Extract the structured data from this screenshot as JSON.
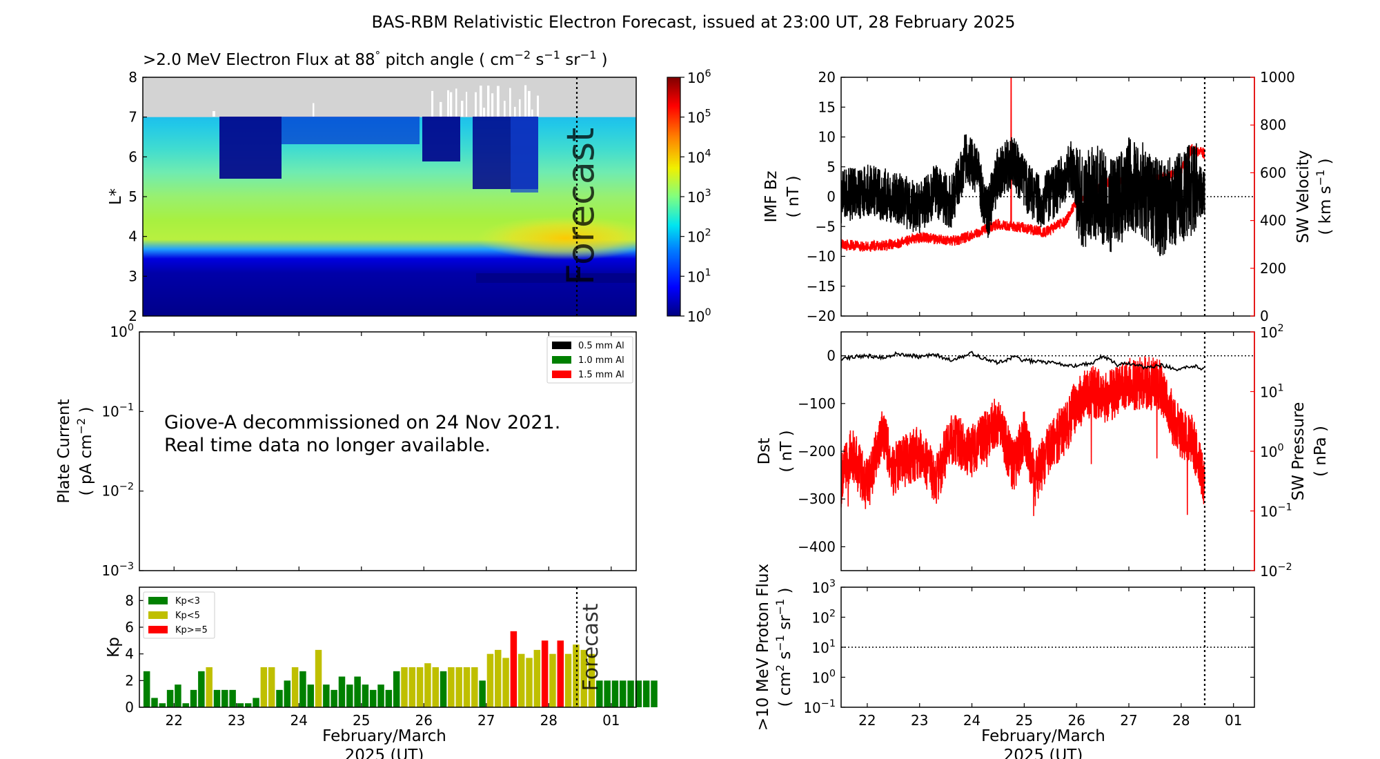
{
  "figure": {
    "title": "BAS-RBM Relativistic Electron Forecast, issued at 23:00 UT, 28 February 2025"
  },
  "colors": {
    "black": "#000000",
    "red": "#ff0000",
    "kp_green": "#008000",
    "kp_yellow": "#bfbf00",
    "kp_red": "#ff0000",
    "grey": "#d3d3d3",
    "forecast_text": "#b0b0b0"
  },
  "time_axis": {
    "range_days": [
      21.5,
      29.4
    ],
    "forecast_start": 28.45,
    "tick_labels": [
      "22",
      "23",
      "24",
      "25",
      "26",
      "27",
      "28",
      "01"
    ],
    "xlabel_line1": "February/March",
    "xlabel_line2": "2025 (UT)"
  },
  "chart_data": [
    {
      "id": "electron_flux",
      "type": "heatmap",
      "title_main": ">2.0 MeV Electron Flux at 88",
      "title_deg": "°",
      "title_paren": " pitch angle ( cm",
      "title_exp1": "−2",
      "title_s": " s",
      "title_exp2": "−1",
      "title_sr": " sr",
      "title_exp3": "−1",
      "title_close": " )",
      "ylabel": "L*",
      "ylim": [
        2,
        8
      ],
      "yticks": [
        "2",
        "3",
        "4",
        "5",
        "6",
        "7",
        "8"
      ],
      "colorbar_base": "10",
      "colorbar_exponents": [
        "0",
        "1",
        "2",
        "3",
        "4",
        "5",
        "6"
      ],
      "forecast_label": "Forecast",
      "grey_region_above_L": 7
    },
    {
      "id": "plate_current",
      "type": "line",
      "ylabel_line1": "Plate Current",
      "ylabel_line2": "( pA cm",
      "ylabel_exp": "−2",
      "ylabel_close": " )",
      "y_base": "10",
      "y_exponents": [
        "0",
        "−1",
        "−2",
        "−3"
      ],
      "legend": [
        "0.5 mm Al",
        "1.0 mm Al",
        "1.5 mm Al"
      ],
      "message_line1": "Giove-A decommissioned on 24 Nov 2021.",
      "message_line2": "Real time data no longer available."
    },
    {
      "id": "kp",
      "type": "bar",
      "ylabel": "Kp",
      "ylim": [
        0,
        9
      ],
      "yticks": [
        "0",
        "2",
        "4",
        "6",
        "8"
      ],
      "legend": [
        "Kp<3",
        "Kp<5",
        "Kp>=5"
      ],
      "forecast_label": "Forecast",
      "bar_width_days": 0.105,
      "values": [
        2.7,
        0.7,
        0.3,
        1.3,
        1.7,
        0.3,
        1.3,
        2.7,
        3.0,
        1.3,
        1.3,
        1.3,
        0.3,
        0.3,
        0.7,
        3.0,
        3.0,
        1.3,
        2.0,
        3.0,
        2.7,
        1.7,
        4.3,
        1.7,
        1.3,
        2.3,
        1.7,
        2.3,
        1.7,
        1.3,
        1.7,
        1.3,
        2.7,
        3.0,
        3.0,
        3.0,
        3.3,
        3.0,
        2.7,
        3.0,
        3.0,
        3.0,
        3.0,
        2.0,
        4.0,
        4.3,
        3.7,
        5.7,
        4.0,
        3.7,
        4.3,
        5.0,
        4.0,
        5.0,
        4.0,
        4.7,
        4.3,
        4.0,
        2.0,
        2.0,
        2.0,
        2.0,
        2.0,
        2.0,
        2.0,
        2.0
      ]
    },
    {
      "id": "imf_sw",
      "type": "line",
      "left_label_line1": "IMF Bz",
      "left_label_line2": "( nT )",
      "left_ylim": [
        -20,
        20
      ],
      "left_ticks": [
        "−20",
        "−15",
        "−10",
        "−5",
        "0",
        "5",
        "10",
        "15",
        "20"
      ],
      "right_label_line1": "SW Velocity",
      "right_label_line2": "( km s",
      "right_label_exp": "−1",
      "right_label_close": " )",
      "right_ylim": [
        0,
        1000
      ],
      "right_ticks": [
        "0",
        "200",
        "400",
        "600",
        "800",
        "1000"
      ],
      "bz_anchors": [
        [
          21.5,
          0
        ],
        [
          22.0,
          1
        ],
        [
          22.5,
          0
        ],
        [
          23.0,
          -2
        ],
        [
          23.3,
          1
        ],
        [
          23.6,
          -1
        ],
        [
          23.9,
          7
        ],
        [
          24.1,
          4
        ],
        [
          24.3,
          -3
        ],
        [
          24.5,
          4
        ],
        [
          24.8,
          6
        ],
        [
          25.0,
          2
        ],
        [
          25.3,
          -1
        ],
        [
          25.6,
          1
        ],
        [
          25.9,
          5
        ],
        [
          26.1,
          -1
        ],
        [
          26.4,
          1
        ],
        [
          26.7,
          -2
        ],
        [
          27.0,
          2
        ],
        [
          27.3,
          1
        ],
        [
          27.6,
          -2
        ],
        [
          27.9,
          -1
        ],
        [
          28.2,
          1
        ],
        [
          28.45,
          1
        ]
      ],
      "vel_anchors": [
        [
          21.5,
          300
        ],
        [
          22.0,
          290
        ],
        [
          22.5,
          300
        ],
        [
          23.0,
          330
        ],
        [
          23.4,
          320
        ],
        [
          23.7,
          315
        ],
        [
          24.0,
          340
        ],
        [
          24.5,
          385
        ],
        [
          25.0,
          370
        ],
        [
          25.4,
          350
        ],
        [
          25.8,
          400
        ],
        [
          26.0,
          480
        ],
        [
          26.3,
          520
        ],
        [
          26.6,
          560
        ],
        [
          27.0,
          560
        ],
        [
          27.4,
          565
        ],
        [
          27.8,
          590
        ],
        [
          28.0,
          610
        ],
        [
          28.2,
          700
        ],
        [
          28.45,
          680
        ]
      ],
      "vel_spike": [
        24.75,
        1000
      ]
    },
    {
      "id": "dst_pressure",
      "type": "line",
      "left_label_line1": "Dst",
      "left_label_line2": "( nT )",
      "left_ylim": [
        -450,
        50
      ],
      "left_ticks": [
        "−400",
        "−300",
        "−200",
        "−100",
        "0"
      ],
      "right_label_line1": "SW Pressure",
      "right_label_line2": "( nPa )",
      "right_base": "10",
      "right_exponents": [
        "−2",
        "−1",
        "0",
        "1",
        "2"
      ],
      "dst_anchors": [
        [
          21.5,
          -5
        ],
        [
          22.0,
          0
        ],
        [
          22.3,
          -3
        ],
        [
          22.6,
          5
        ],
        [
          23.0,
          -2
        ],
        [
          23.3,
          3
        ],
        [
          23.6,
          -10
        ],
        [
          24.0,
          5
        ],
        [
          24.2,
          -5
        ],
        [
          24.5,
          -15
        ],
        [
          24.8,
          -2
        ],
        [
          25.0,
          -10
        ],
        [
          25.3,
          -12
        ],
        [
          25.6,
          -15
        ],
        [
          26.0,
          -22
        ],
        [
          26.3,
          -15
        ],
        [
          26.5,
          0
        ],
        [
          26.8,
          -20
        ],
        [
          27.0,
          -15
        ],
        [
          27.3,
          -25
        ],
        [
          27.6,
          -20
        ],
        [
          27.9,
          -28
        ],
        [
          28.2,
          -20
        ],
        [
          28.45,
          -28
        ]
      ],
      "log_pressure_anchors": [
        [
          21.5,
          -0.5
        ],
        [
          21.7,
          0.0
        ],
        [
          22.0,
          -0.6
        ],
        [
          22.3,
          0.3
        ],
        [
          22.5,
          -0.3
        ],
        [
          23.0,
          0.0
        ],
        [
          23.3,
          -0.5
        ],
        [
          23.6,
          0.2
        ],
        [
          24.0,
          0.0
        ],
        [
          24.3,
          0.3
        ],
        [
          24.5,
          0.5
        ],
        [
          24.8,
          -0.3
        ],
        [
          25.0,
          0.3
        ],
        [
          25.2,
          -0.5
        ],
        [
          25.5,
          0.1
        ],
        [
          25.8,
          0.4
        ],
        [
          26.0,
          0.8
        ],
        [
          26.3,
          1.0
        ],
        [
          26.6,
          0.9
        ],
        [
          26.9,
          1.1
        ],
        [
          27.3,
          1.15
        ],
        [
          27.6,
          1.1
        ],
        [
          27.9,
          0.4
        ],
        [
          28.2,
          0.2
        ],
        [
          28.45,
          -0.5
        ]
      ]
    },
    {
      "id": "proton_flux",
      "type": "line",
      "label_line1": ">10 MeV Proton Flux",
      "label_line2": "( cm",
      "label_exp1": "2",
      "label_s": " s",
      "label_exp2": "−1",
      "label_sr": " sr",
      "label_exp3": "−1",
      "label_close": " )",
      "y_base": "10",
      "y_exponents": [
        "−1",
        "0",
        "1",
        "2",
        "3"
      ],
      "threshold": 10
    }
  ]
}
